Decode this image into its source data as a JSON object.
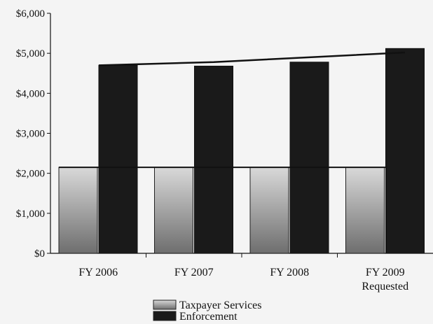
{
  "chart_data": {
    "type": "bar",
    "categories": [
      "FY 2006",
      "FY 2007",
      "FY 2008",
      "FY 2009"
    ],
    "category_sublabels": [
      "",
      "",
      "",
      "Requested"
    ],
    "y_tick_labels": [
      "$0",
      "$1,000",
      "$2,000",
      "$3,000",
      "$4,000",
      "$5,000",
      "$6,000"
    ],
    "ylim": [
      0,
      6000
    ],
    "grid": false,
    "legend_position": "bottom-center",
    "series": [
      {
        "name": "Taxpayer Services",
        "values": [
          2150,
          2150,
          2150,
          2150
        ],
        "color": "#b5b5b5"
      },
      {
        "name": "Enforcement",
        "values": [
          4700,
          4680,
          4780,
          5120
        ],
        "color": "#1a1a1a"
      }
    ],
    "overlay_line": {
      "values": [
        4700,
        4780,
        4900,
        5020
      ],
      "color": "#111111"
    }
  }
}
